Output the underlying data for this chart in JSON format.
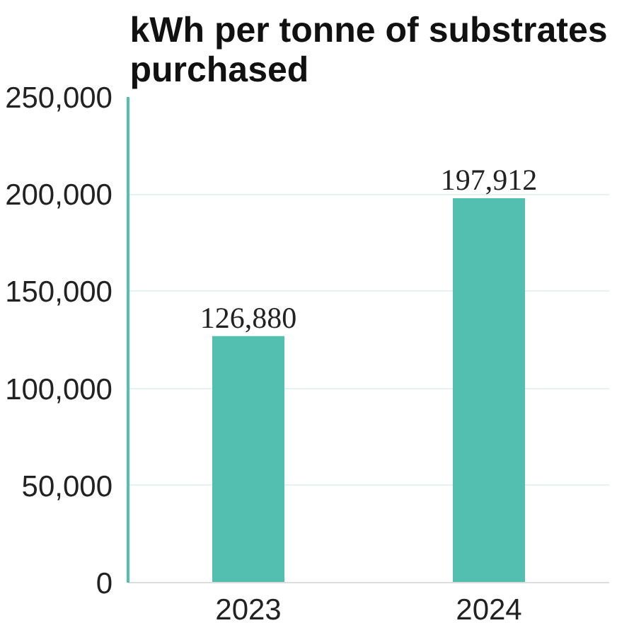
{
  "chart_data": {
    "type": "bar",
    "title": "kWh per tonne of substrates\npurchased",
    "categories": [
      "2023",
      "2024"
    ],
    "values": [
      126880,
      197912
    ],
    "value_labels": [
      "126,880",
      "197,912"
    ],
    "color": "#52bfb0",
    "ylim": [
      0,
      250000
    ],
    "yticks": [
      {
        "value": 0,
        "label": "0"
      },
      {
        "value": 50000,
        "label": "50,000"
      },
      {
        "value": 100000,
        "label": "100,000"
      },
      {
        "value": 150000,
        "label": "150,000"
      },
      {
        "value": 200000,
        "label": "200,000"
      },
      {
        "value": 250000,
        "label": "250,000"
      }
    ],
    "grid": "y"
  }
}
